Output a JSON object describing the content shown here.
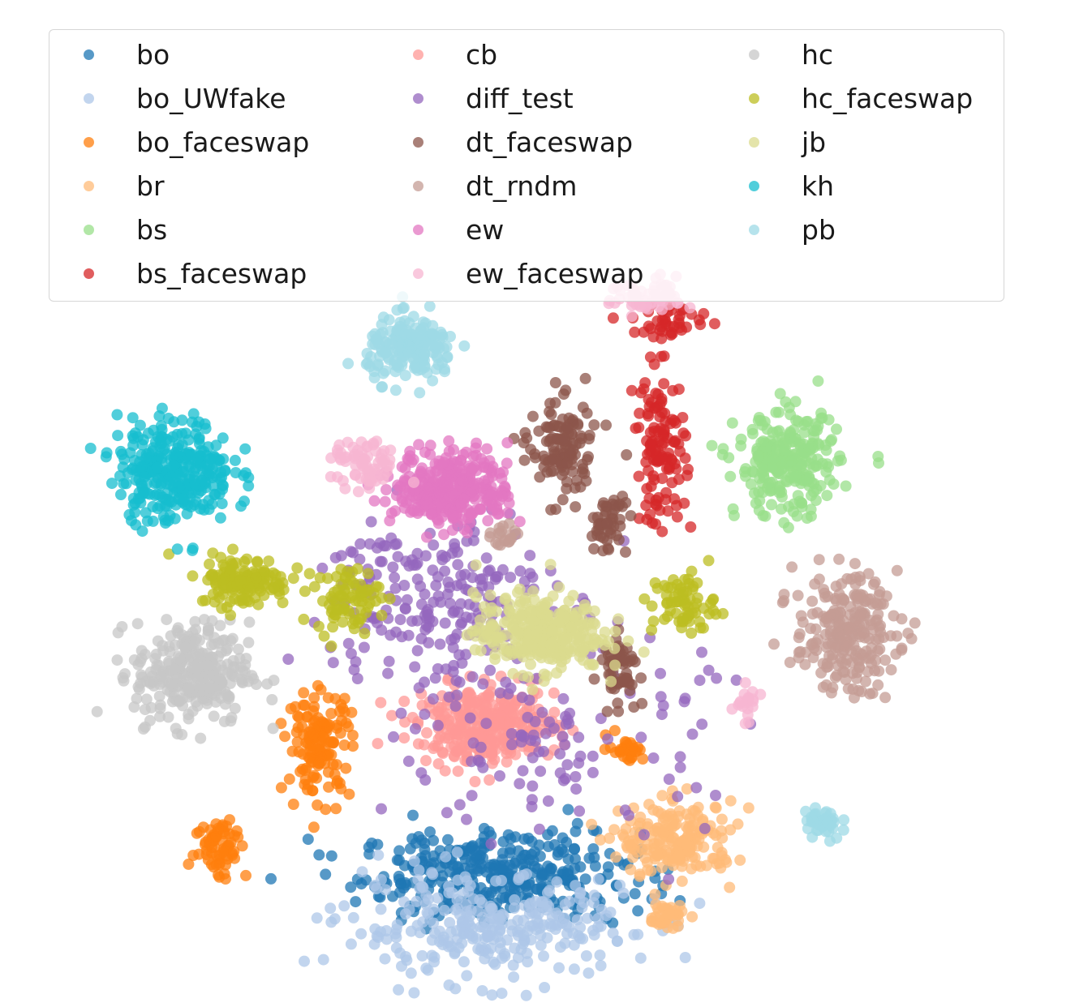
{
  "chart_data": {
    "type": "scatter",
    "title": "",
    "xlabel": "",
    "ylabel": "",
    "axes_visible": false,
    "grid": false,
    "legend_placement": "top",
    "legend_columns": 3,
    "series": [
      {
        "name": "bo",
        "color": "#1f77b4",
        "clusters": [
          {
            "cx": 0.5,
            "cy": -0.9,
            "sx": 2.2,
            "sy": 0.7,
            "n": 380
          }
        ]
      },
      {
        "name": "bo_UWfake",
        "color": "#aec7e8",
        "clusters": [
          {
            "cx": 0.3,
            "cy": -1.8,
            "sx": 2.3,
            "sy": 0.8,
            "n": 300
          }
        ]
      },
      {
        "name": "bo_faceswap",
        "color": "#ff7f0e",
        "clusters": [
          {
            "cx": -2.6,
            "cy": 1.4,
            "sx": 0.5,
            "sy": 0.8,
            "n": 140
          },
          {
            "cx": -4.3,
            "cy": -0.4,
            "sx": 0.4,
            "sy": 0.5,
            "n": 70
          },
          {
            "cx": 2.7,
            "cy": 1.3,
            "sx": 0.3,
            "sy": 0.2,
            "n": 30
          }
        ]
      },
      {
        "name": "br",
        "color": "#ffbb78",
        "clusters": [
          {
            "cx": 3.6,
            "cy": -0.3,
            "sx": 0.9,
            "sy": 0.6,
            "n": 200
          },
          {
            "cx": 3.4,
            "cy": -1.6,
            "sx": 0.3,
            "sy": 0.2,
            "n": 40
          }
        ]
      },
      {
        "name": "bs",
        "color": "#98df8a",
        "clusters": [
          {
            "cx": 5.5,
            "cy": 6.2,
            "sx": 0.8,
            "sy": 0.8,
            "n": 260
          }
        ]
      },
      {
        "name": "bs_faceswap",
        "color": "#d62728",
        "clusters": [
          {
            "cx": 3.3,
            "cy": 6.5,
            "sx": 0.4,
            "sy": 1.2,
            "n": 120
          },
          {
            "cx": 3.5,
            "cy": 8.7,
            "sx": 0.6,
            "sy": 0.3,
            "n": 40
          }
        ]
      },
      {
        "name": "cb",
        "color": "#ff9896",
        "clusters": [
          {
            "cx": 0.3,
            "cy": 1.7,
            "sx": 1.1,
            "sy": 0.6,
            "n": 330
          }
        ]
      },
      {
        "name": "diff_test",
        "color": "#9467bd",
        "clusters": [
          {
            "cx": -0.6,
            "cy": 3.9,
            "sx": 1.8,
            "sy": 1.5,
            "n": 220
          },
          {
            "cx": 1.5,
            "cy": 1.5,
            "sx": 2.4,
            "sy": 1.6,
            "n": 120
          }
        ]
      },
      {
        "name": "dt_faceswap",
        "color": "#8c564b",
        "clusters": [
          {
            "cx": 1.6,
            "cy": 6.5,
            "sx": 0.5,
            "sy": 0.8,
            "n": 120
          },
          {
            "cx": 2.4,
            "cy": 5.2,
            "sx": 0.3,
            "sy": 0.5,
            "n": 50
          },
          {
            "cx": 2.6,
            "cy": 2.7,
            "sx": 0.3,
            "sy": 0.5,
            "n": 60
          }
        ]
      },
      {
        "name": "dt_rndm",
        "color": "#c49c94",
        "clusters": [
          {
            "cx": 6.5,
            "cy": 3.3,
            "sx": 0.8,
            "sy": 0.9,
            "n": 240
          },
          {
            "cx": 0.6,
            "cy": 5.0,
            "sx": 0.2,
            "sy": 0.2,
            "n": 20
          }
        ]
      },
      {
        "name": "ew",
        "color": "#e377c2",
        "clusters": [
          {
            "cx": -0.3,
            "cy": 5.8,
            "sx": 0.9,
            "sy": 0.6,
            "n": 340
          }
        ]
      },
      {
        "name": "ew_faceswap",
        "color": "#f7b6d2",
        "clusters": [
          {
            "cx": -1.8,
            "cy": 6.2,
            "sx": 0.5,
            "sy": 0.4,
            "n": 70
          },
          {
            "cx": 3.1,
            "cy": 9.1,
            "sx": 0.6,
            "sy": 0.3,
            "n": 60
          },
          {
            "cx": 4.8,
            "cy": 2.0,
            "sx": 0.2,
            "sy": 0.4,
            "n": 20
          }
        ]
      },
      {
        "name": "hc",
        "color": "#c7c7c7",
        "clusters": [
          {
            "cx": -4.8,
            "cy": 2.6,
            "sx": 0.9,
            "sy": 0.8,
            "n": 300
          }
        ]
      },
      {
        "name": "hc_faceswap",
        "color": "#bcbd22",
        "clusters": [
          {
            "cx": -3.9,
            "cy": 4.2,
            "sx": 0.7,
            "sy": 0.4,
            "n": 140
          },
          {
            "cx": -2.1,
            "cy": 3.9,
            "sx": 0.5,
            "sy": 0.5,
            "n": 80
          },
          {
            "cx": 3.7,
            "cy": 3.8,
            "sx": 0.5,
            "sy": 0.5,
            "n": 70
          }
        ]
      },
      {
        "name": "jb",
        "color": "#dbdb8d",
        "clusters": [
          {
            "cx": 1.2,
            "cy": 3.3,
            "sx": 1.0,
            "sy": 0.6,
            "n": 320
          }
        ]
      },
      {
        "name": "kh",
        "color": "#17becf",
        "clusters": [
          {
            "cx": -5.1,
            "cy": 6.1,
            "sx": 0.9,
            "sy": 0.8,
            "n": 320
          }
        ]
      },
      {
        "name": "pb",
        "color": "#9edae5",
        "clusters": [
          {
            "cx": -1.0,
            "cy": 8.2,
            "sx": 0.7,
            "sy": 0.5,
            "n": 180
          },
          {
            "cx": 6.1,
            "cy": 0.0,
            "sx": 0.3,
            "sy": 0.3,
            "n": 40
          }
        ]
      }
    ],
    "xlim": [
      -7.0,
      9.0
    ],
    "ylim": [
      -3.0,
      12.0
    ]
  }
}
